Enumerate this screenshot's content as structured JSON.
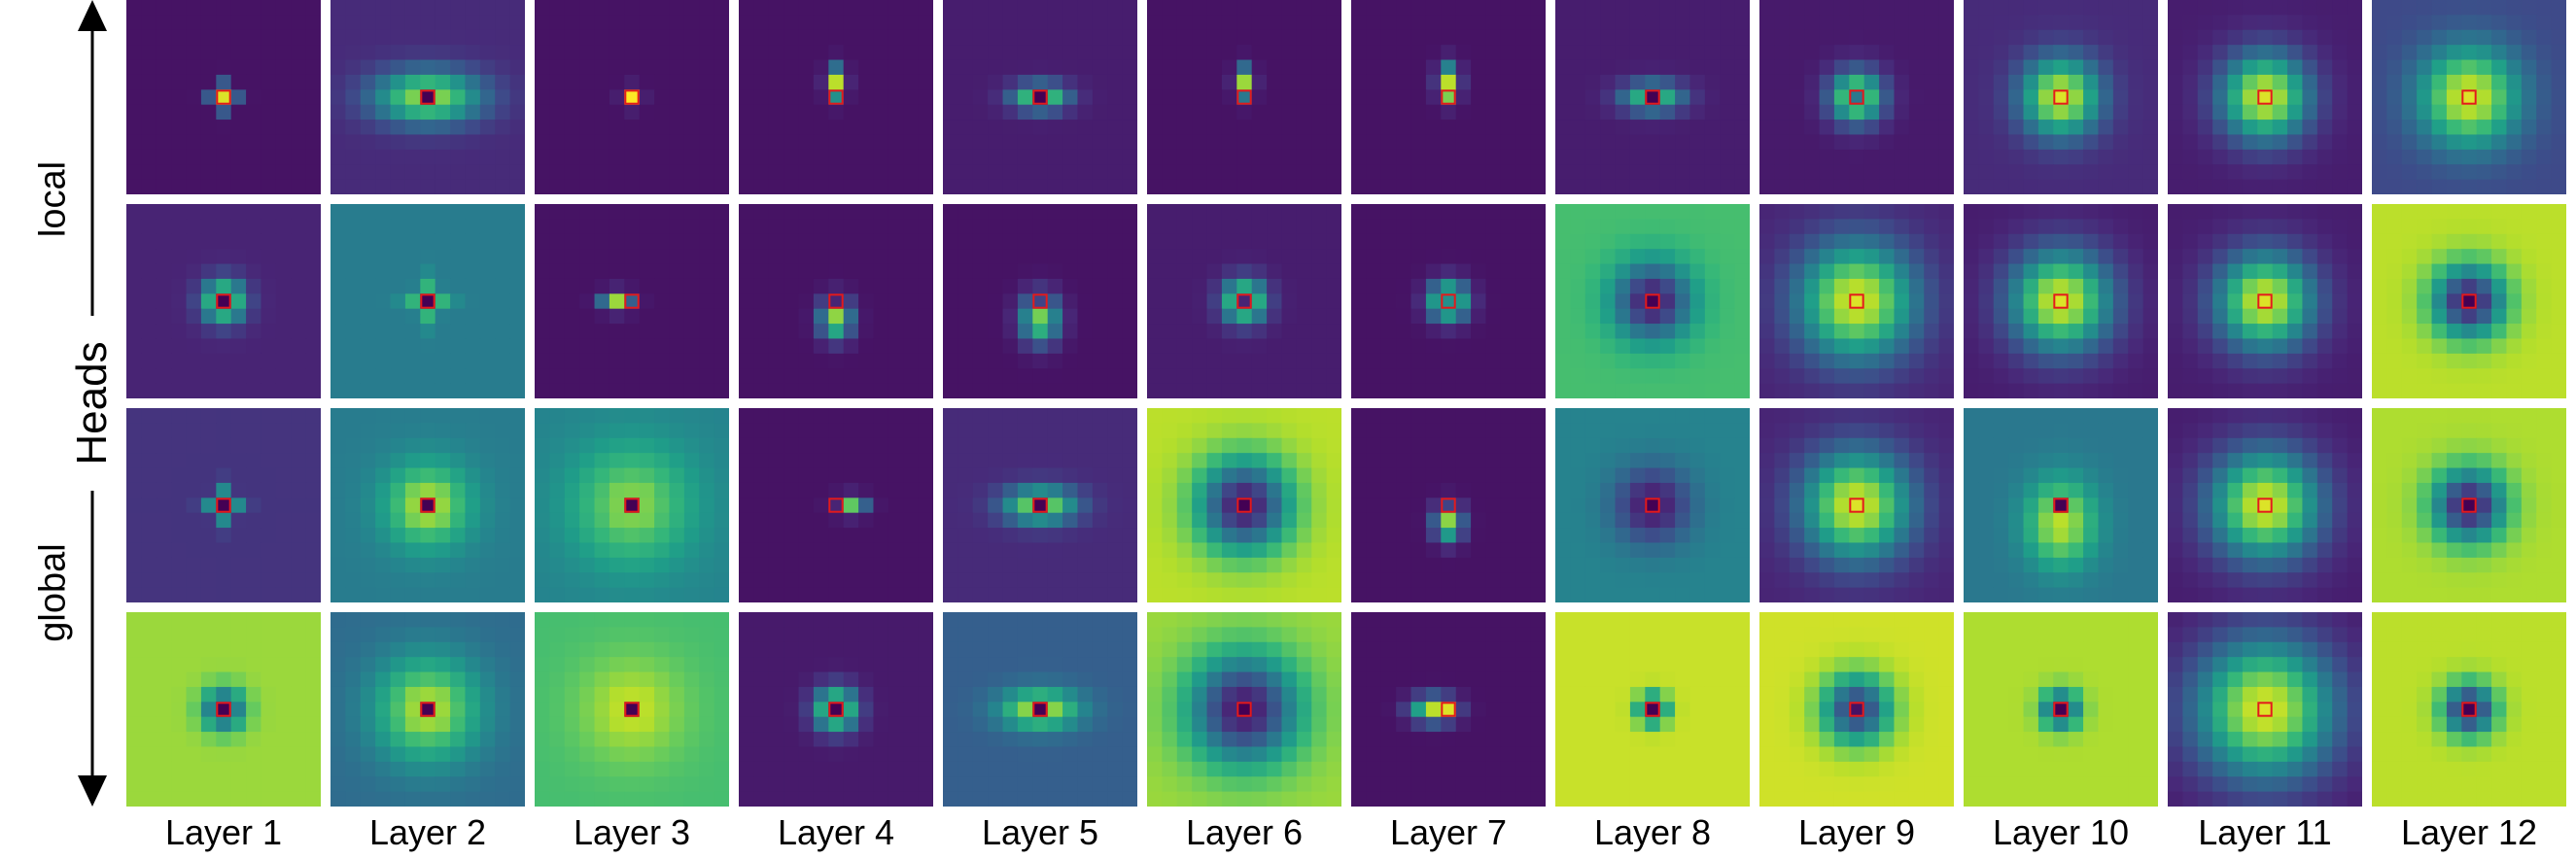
{
  "labels": {
    "local": "local",
    "heads": "Heads",
    "global": "global"
  },
  "layers": [
    "Layer 1",
    "Layer 2",
    "Layer 3",
    "Layer 4",
    "Layer 5",
    "Layer 6",
    "Layer 7",
    "Layer 8",
    "Layer 9",
    "Layer 10",
    "Layer 11",
    "Layer 12"
  ],
  "colors": {
    "marker": "#e31a1c",
    "colormap": "viridis",
    "axis": "#000000"
  },
  "heads": 4,
  "panels": [
    [
      {
        "bg": 0.05,
        "pk": 0.95,
        "sp": 0.6,
        "ce": 0.95,
        "pat": "cross"
      },
      {
        "bg": 0.12,
        "pk": 0.85,
        "sp": 1.8,
        "ce": 0.0,
        "pat": "hring"
      },
      {
        "bg": 0.05,
        "pk": 0.95,
        "sp": 0.4,
        "ce": 1.0,
        "pat": "point"
      },
      {
        "bg": 0.05,
        "pk": 0.9,
        "sp": 0.7,
        "ce": 0.5,
        "pat": "up"
      },
      {
        "bg": 0.08,
        "pk": 0.85,
        "sp": 0.9,
        "ce": 0.0,
        "pat": "hring"
      },
      {
        "bg": 0.05,
        "pk": 0.85,
        "sp": 0.7,
        "ce": 0.4,
        "pat": "up"
      },
      {
        "bg": 0.05,
        "pk": 0.9,
        "sp": 0.8,
        "ce": 0.8,
        "pat": "up"
      },
      {
        "bg": 0.08,
        "pk": 0.75,
        "sp": 1.0,
        "ce": 0.0,
        "pat": "hring"
      },
      {
        "bg": 0.07,
        "pk": 0.9,
        "sp": 1.2,
        "ce": 0.4,
        "pat": "blob"
      },
      {
        "bg": 0.12,
        "pk": 0.95,
        "sp": 1.8,
        "ce": 0.95,
        "pat": "blob"
      },
      {
        "bg": 0.08,
        "pk": 0.95,
        "sp": 2.0,
        "ce": 0.95,
        "pat": "blob"
      },
      {
        "bg": 0.22,
        "pk": 0.95,
        "sp": 2.3,
        "ce": 0.95,
        "pat": "blob"
      }
    ],
    [
      {
        "bg": 0.1,
        "pk": 0.85,
        "sp": 1.0,
        "ce": 0.0,
        "pat": "ring"
      },
      {
        "bg": 0.42,
        "pk": 0.8,
        "sp": 1.0,
        "ce": 0.0,
        "pat": "cross"
      },
      {
        "bg": 0.05,
        "pk": 0.85,
        "sp": 0.7,
        "ce": 0.3,
        "pat": "left"
      },
      {
        "bg": 0.05,
        "pk": 0.85,
        "sp": 0.9,
        "ce": 0.1,
        "pat": "down"
      },
      {
        "bg": 0.05,
        "pk": 0.8,
        "sp": 1.1,
        "ce": 0.2,
        "pat": "down"
      },
      {
        "bg": 0.08,
        "pk": 0.85,
        "sp": 1.0,
        "ce": 0.1,
        "pat": "ring"
      },
      {
        "bg": 0.05,
        "pk": 0.85,
        "sp": 0.9,
        "ce": 0.5,
        "pat": "ring"
      },
      {
        "bg": 0.7,
        "pk": 0.05,
        "sp": 1.8,
        "ce": 0.0,
        "pat": "inv"
      },
      {
        "bg": 0.1,
        "pk": 0.95,
        "sp": 2.7,
        "ce": 0.95,
        "pat": "blob"
      },
      {
        "bg": 0.08,
        "pk": 0.95,
        "sp": 2.3,
        "ce": 0.95,
        "pat": "blob"
      },
      {
        "bg": 0.08,
        "pk": 0.95,
        "sp": 2.2,
        "ce": 0.95,
        "pat": "blob"
      },
      {
        "bg": 0.9,
        "pk": 0.05,
        "sp": 1.7,
        "ce": 0.0,
        "pat": "inv"
      }
    ],
    [
      {
        "bg": 0.15,
        "pk": 0.85,
        "sp": 0.8,
        "ce": 0.0,
        "pat": "cross"
      },
      {
        "bg": 0.42,
        "pk": 0.85,
        "sp": 2.0,
        "ce": 0.0,
        "pat": "ring"
      },
      {
        "bg": 0.45,
        "pk": 0.8,
        "sp": 2.8,
        "ce": 0.0,
        "pat": "ring"
      },
      {
        "bg": 0.05,
        "pk": 0.75,
        "sp": 0.7,
        "ce": 0.1,
        "pat": "right"
      },
      {
        "bg": 0.12,
        "pk": 0.85,
        "sp": 1.2,
        "ce": 0.0,
        "pat": "hring"
      },
      {
        "bg": 0.9,
        "pk": 0.05,
        "sp": 2.2,
        "ce": 0.0,
        "pat": "inv"
      },
      {
        "bg": 0.05,
        "pk": 0.85,
        "sp": 0.8,
        "ce": 0.2,
        "pat": "down"
      },
      {
        "bg": 0.45,
        "pk": 0.05,
        "sp": 1.8,
        "ce": 0.0,
        "pat": "inv"
      },
      {
        "bg": 0.1,
        "pk": 0.95,
        "sp": 2.5,
        "ce": 0.95,
        "pat": "blob"
      },
      {
        "bg": 0.4,
        "pk": 0.9,
        "sp": 2.0,
        "ce": 0.0,
        "pat": "down"
      },
      {
        "bg": 0.08,
        "pk": 0.95,
        "sp": 2.5,
        "ce": 0.95,
        "pat": "blob"
      },
      {
        "bg": 0.88,
        "pk": 0.05,
        "sp": 1.7,
        "ce": 0.0,
        "pat": "inv"
      }
    ],
    [
      {
        "bg": 0.85,
        "pk": 0.2,
        "sp": 1.0,
        "ce": 0.0,
        "pat": "inv"
      },
      {
        "bg": 0.35,
        "pk": 0.85,
        "sp": 2.5,
        "ce": 0.0,
        "pat": "ring"
      },
      {
        "bg": 0.7,
        "pk": 0.9,
        "sp": 2.5,
        "ce": 0.0,
        "pat": "ring"
      },
      {
        "bg": 0.07,
        "pk": 0.85,
        "sp": 1.0,
        "ce": 0.0,
        "pat": "ring"
      },
      {
        "bg": 0.3,
        "pk": 0.9,
        "sp": 1.3,
        "ce": 0.0,
        "pat": "hring"
      },
      {
        "bg": 0.85,
        "pk": 0.05,
        "sp": 2.6,
        "ce": 0.0,
        "pat": "inv"
      },
      {
        "bg": 0.05,
        "pk": 0.9,
        "sp": 1.0,
        "ce": 0.95,
        "pat": "left"
      },
      {
        "bg": 0.92,
        "pk": 0.1,
        "sp": 0.7,
        "ce": 0.0,
        "pat": "inv"
      },
      {
        "bg": 0.93,
        "pk": 0.15,
        "sp": 1.6,
        "ce": 0.05,
        "pat": "inv"
      },
      {
        "bg": 0.88,
        "pk": 0.15,
        "sp": 0.9,
        "ce": 0.0,
        "pat": "inv"
      },
      {
        "bg": 0.07,
        "pk": 0.95,
        "sp": 3.2,
        "ce": 0.95,
        "pat": "blob"
      },
      {
        "bg": 0.9,
        "pk": 0.05,
        "sp": 1.2,
        "ce": 0.0,
        "pat": "inv"
      }
    ]
  ]
}
